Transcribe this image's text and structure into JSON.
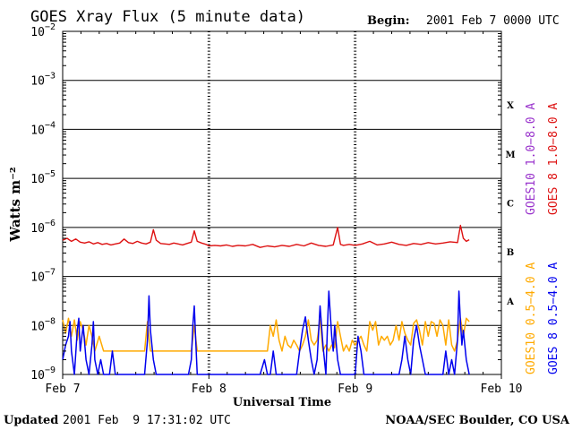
{
  "header": {
    "title": "GOES Xray Flux (5 minute data)",
    "begin_label": "Begin:",
    "begin_value": "2001 Feb 7 0000 UTC"
  },
  "footer": {
    "updated_label": "Updated",
    "updated_value": "2001 Feb  9 17:31:02 UTC",
    "credit": "NOAA/SEC Boulder, CO USA"
  },
  "colors": {
    "goes10_long": "#9933cc",
    "goes8_long": "#dd1111",
    "goes10_short": "#ffaa00",
    "goes8_short": "#0000ee",
    "axis": "#000000"
  },
  "chart_data": {
    "type": "line",
    "title": "GOES Xray Flux (5 minute data)",
    "xlabel": "Universal Time",
    "ylabel": "Watts m⁻²",
    "y_scale": "log",
    "ylim": [
      1e-09,
      0.01
    ],
    "x_range_days": [
      0,
      3
    ],
    "x_ticks": [
      {
        "day": 0,
        "label": "Feb 7"
      },
      {
        "day": 1,
        "label": "Feb 8"
      },
      {
        "day": 2,
        "label": "Feb 9"
      },
      {
        "day": 3,
        "label": "Feb 10"
      }
    ],
    "y_ticks": [
      {
        "exp": -2,
        "label_base": "10",
        "label_exp": "−2"
      },
      {
        "exp": -3,
        "label_base": "10",
        "label_exp": "−3"
      },
      {
        "exp": -4,
        "label_base": "10",
        "label_exp": "−4"
      },
      {
        "exp": -5,
        "label_base": "10",
        "label_exp": "−5"
      },
      {
        "exp": -6,
        "label_base": "10",
        "label_exp": "−6"
      },
      {
        "exp": -7,
        "label_base": "10",
        "label_exp": "−7"
      },
      {
        "exp": -8,
        "label_base": "10",
        "label_exp": "−8"
      },
      {
        "exp": -9,
        "label_base": "10",
        "label_exp": "−9"
      }
    ],
    "flare_classes": [
      {
        "label": "X",
        "exp": -3.5
      },
      {
        "label": "M",
        "exp": -4.5
      },
      {
        "label": "C",
        "exp": -5.5
      },
      {
        "label": "B",
        "exp": -6.5
      },
      {
        "label": "A",
        "exp": -7.5
      }
    ],
    "legend": [
      {
        "text": "GOES10 1.0−8.0 A",
        "color": "#9933cc"
      },
      {
        "text": "GOES 8 1.0−8.0 A",
        "color": "#dd1111"
      },
      {
        "text": "GOES10 0.5−4.0 A",
        "color": "#ffaa00"
      },
      {
        "text": "GOES 8 0.5−4.0 A",
        "color": "#0000ee"
      }
    ],
    "series": [
      {
        "name": "GOES 8 1.0−8.0 A",
        "color": "#dd1111",
        "x": [
          0.0,
          0.03,
          0.06,
          0.09,
          0.12,
          0.15,
          0.18,
          0.21,
          0.24,
          0.27,
          0.3,
          0.33,
          0.36,
          0.39,
          0.42,
          0.45,
          0.48,
          0.51,
          0.54,
          0.57,
          0.6,
          0.62,
          0.64,
          0.67,
          0.7,
          0.73,
          0.76,
          0.79,
          0.82,
          0.85,
          0.88,
          0.9,
          0.92,
          0.95,
          0.98,
          1.0,
          1.04,
          1.08,
          1.12,
          1.16,
          1.2,
          1.25,
          1.3,
          1.35,
          1.4,
          1.45,
          1.5,
          1.55,
          1.6,
          1.65,
          1.7,
          1.75,
          1.8,
          1.85,
          1.88,
          1.9,
          1.92,
          1.96,
          2.0,
          2.05,
          2.1,
          2.15,
          2.2,
          2.25,
          2.3,
          2.35,
          2.4,
          2.45,
          2.5,
          2.55,
          2.6,
          2.65,
          2.7,
          2.72,
          2.74,
          2.76,
          2.78
        ],
        "y": [
          5.5e-07,
          6e-07,
          5.2e-07,
          5.8e-07,
          5e-07,
          4.8e-07,
          5.1e-07,
          4.6e-07,
          4.9e-07,
          4.5e-07,
          4.7e-07,
          4.4e-07,
          4.6e-07,
          4.8e-07,
          5.8e-07,
          4.9e-07,
          4.7e-07,
          5.2e-07,
          4.8e-07,
          4.6e-07,
          5e-07,
          9e-07,
          5.5e-07,
          4.7e-07,
          4.6e-07,
          4.5e-07,
          4.8e-07,
          4.6e-07,
          4.4e-07,
          4.7e-07,
          5e-07,
          8.5e-07,
          5.2e-07,
          4.8e-07,
          4.5e-07,
          4.2e-07,
          4.3e-07,
          4.2e-07,
          4.4e-07,
          4.1e-07,
          4.3e-07,
          4.2e-07,
          4.5e-07,
          3.9e-07,
          4.2e-07,
          4e-07,
          4.3e-07,
          4.1e-07,
          4.5e-07,
          4.2e-07,
          4.8e-07,
          4.3e-07,
          4.1e-07,
          4.4e-07,
          1e-06,
          4.5e-07,
          4.3e-07,
          4.5e-07,
          4.3e-07,
          4.6e-07,
          5.2e-07,
          4.4e-07,
          4.6e-07,
          5e-07,
          4.5e-07,
          4.3e-07,
          4.7e-07,
          4.5e-07,
          4.9e-07,
          4.6e-07,
          4.8e-07,
          5.1e-07,
          4.9e-07,
          1.1e-06,
          6e-07,
          5.2e-07,
          5.6e-07
        ]
      },
      {
        "name": "GOES10 0.5−4.0 A",
        "color": "#ffaa00",
        "x": [
          0.0,
          0.02,
          0.04,
          0.06,
          0.08,
          0.1,
          0.12,
          0.14,
          0.16,
          0.18,
          0.2,
          0.22,
          0.25,
          0.28,
          0.32,
          0.36,
          0.4,
          0.44,
          0.48,
          0.52,
          0.56,
          0.58,
          0.6,
          0.62,
          0.64,
          0.68,
          0.72,
          0.76,
          0.8,
          0.84,
          0.88,
          0.9,
          0.92,
          0.94,
          0.96,
          1.0,
          1.1,
          1.2,
          1.3,
          1.4,
          1.42,
          1.44,
          1.46,
          1.48,
          1.5,
          1.52,
          1.54,
          1.56,
          1.58,
          1.6,
          1.62,
          1.64,
          1.66,
          1.68,
          1.7,
          1.72,
          1.74,
          1.76,
          1.78,
          1.8,
          1.82,
          1.84,
          1.86,
          1.88,
          1.9,
          1.92,
          1.94,
          1.96,
          1.98,
          2.0,
          2.02,
          2.04,
          2.06,
          2.08,
          2.1,
          2.12,
          2.14,
          2.16,
          2.18,
          2.2,
          2.22,
          2.24,
          2.26,
          2.28,
          2.3,
          2.32,
          2.34,
          2.36,
          2.38,
          2.4,
          2.42,
          2.44,
          2.46,
          2.48,
          2.5,
          2.52,
          2.54,
          2.56,
          2.58,
          2.6,
          2.62,
          2.64,
          2.66,
          2.68,
          2.7,
          2.72,
          2.74,
          2.76,
          2.78
        ],
        "y": [
          1.3e-08,
          7e-09,
          1.4e-08,
          6e-09,
          1.3e-08,
          5e-09,
          1.2e-08,
          8e-09,
          4e-09,
          1e-08,
          6e-09,
          3e-09,
          6e-09,
          3e-09,
          3e-09,
          3e-09,
          3e-09,
          3e-09,
          3e-09,
          3e-09,
          3e-09,
          1.2e-08,
          3e-09,
          3e-09,
          3e-09,
          3e-09,
          3e-09,
          3e-09,
          3e-09,
          3e-09,
          3e-09,
          1e-08,
          3e-09,
          3e-09,
          3e-09,
          3e-09,
          3e-09,
          3e-09,
          3e-09,
          3e-09,
          1e-08,
          6e-09,
          1.3e-08,
          5e-09,
          3e-09,
          6e-09,
          4e-09,
          3.5e-09,
          5e-09,
          4e-09,
          3e-09,
          4e-09,
          6e-09,
          1.3e-08,
          5e-09,
          4e-09,
          5e-09,
          1.3e-08,
          3e-09,
          4e-09,
          3e-09,
          4e-09,
          3.5e-09,
          1.2e-08,
          6e-09,
          3e-09,
          4e-09,
          3e-09,
          5e-09,
          4e-09,
          5e-09,
          6e-09,
          4e-09,
          3e-09,
          1.2e-08,
          8e-09,
          1.2e-08,
          4e-09,
          6e-09,
          5e-09,
          6e-09,
          4e-09,
          5e-09,
          1e-08,
          5e-09,
          1.2e-08,
          7e-09,
          5e-09,
          4e-09,
          1.1e-08,
          1.3e-08,
          8e-09,
          4e-09,
          1.2e-08,
          6e-09,
          1.2e-08,
          1.1e-08,
          6e-09,
          1.3e-08,
          1e-08,
          4e-09,
          1.3e-08,
          4e-09,
          3e-09,
          5e-09,
          1.4e-08,
          6e-09,
          1.4e-08,
          1.2e-08
        ]
      },
      {
        "name": "GOES 8 0.5−4.0 A",
        "color": "#0000ee",
        "x": [
          0.0,
          0.02,
          0.04,
          0.05,
          0.06,
          0.08,
          0.1,
          0.11,
          0.12,
          0.14,
          0.16,
          0.18,
          0.2,
          0.21,
          0.22,
          0.24,
          0.26,
          0.28,
          0.3,
          0.32,
          0.34,
          0.36,
          0.38,
          0.4,
          0.42,
          0.44,
          0.46,
          0.48,
          0.5,
          0.54,
          0.56,
          0.58,
          0.59,
          0.6,
          0.62,
          0.64,
          0.66,
          0.68,
          0.7,
          0.74,
          0.78,
          0.82,
          0.86,
          0.88,
          0.89,
          0.9,
          0.91,
          0.92,
          0.94,
          0.96,
          0.98,
          1.0,
          1.05,
          1.1,
          1.2,
          1.3,
          1.35,
          1.38,
          1.4,
          1.42,
          1.44,
          1.46,
          1.48,
          1.5,
          1.55,
          1.6,
          1.62,
          1.64,
          1.66,
          1.68,
          1.7,
          1.72,
          1.74,
          1.76,
          1.78,
          1.8,
          1.81,
          1.82,
          1.84,
          1.85,
          1.86,
          1.88,
          1.9,
          1.95,
          2.0,
          2.02,
          2.04,
          2.06,
          2.08,
          2.1,
          2.15,
          2.2,
          2.25,
          2.3,
          2.32,
          2.34,
          2.36,
          2.38,
          2.4,
          2.42,
          2.44,
          2.46,
          2.48,
          2.5,
          2.55,
          2.6,
          2.62,
          2.64,
          2.66,
          2.68,
          2.7,
          2.71,
          2.72,
          2.73,
          2.74,
          2.76,
          2.78
        ],
        "y": [
          2e-09,
          4e-09,
          6e-09,
          1.2e-08,
          3e-09,
          1e-09,
          8e-09,
          1.4e-08,
          3e-09,
          1e-08,
          2e-09,
          1e-09,
          4e-09,
          1.2e-08,
          2e-09,
          1e-09,
          2e-09,
          1e-09,
          1e-09,
          1e-09,
          3e-09,
          1e-09,
          1e-09,
          1e-09,
          1e-09,
          1e-09,
          1e-09,
          1e-09,
          1e-09,
          1e-09,
          1e-09,
          5e-09,
          4e-08,
          8e-09,
          2e-09,
          1e-09,
          1e-09,
          1e-09,
          1e-09,
          1e-09,
          1e-09,
          1e-09,
          1e-09,
          2e-09,
          1e-08,
          2.5e-08,
          5e-09,
          1e-09,
          1e-09,
          1e-09,
          1e-09,
          1e-09,
          1e-09,
          1e-09,
          1e-09,
          1e-09,
          1e-09,
          2e-09,
          1e-09,
          1e-09,
          3e-09,
          1e-09,
          1e-09,
          1e-09,
          1e-09,
          1e-09,
          3e-09,
          8e-09,
          1.5e-08,
          5e-09,
          2e-09,
          1e-09,
          2e-09,
          2.5e-08,
          4e-09,
          1e-09,
          8e-09,
          5e-08,
          6e-09,
          3e-09,
          1e-08,
          2e-09,
          1e-09,
          1e-09,
          1e-09,
          6e-09,
          3e-09,
          1e-09,
          1e-09,
          1e-09,
          1e-09,
          1e-09,
          1e-09,
          1e-09,
          2e-09,
          6e-09,
          2e-09,
          1e-09,
          5e-09,
          1e-08,
          4e-09,
          2e-09,
          1e-09,
          1e-09,
          1e-09,
          1e-09,
          3e-09,
          1e-09,
          2e-09,
          1e-09,
          5e-09,
          5e-08,
          1.2e-08,
          4e-09,
          8e-09,
          2e-09,
          1e-09
        ]
      }
    ]
  }
}
